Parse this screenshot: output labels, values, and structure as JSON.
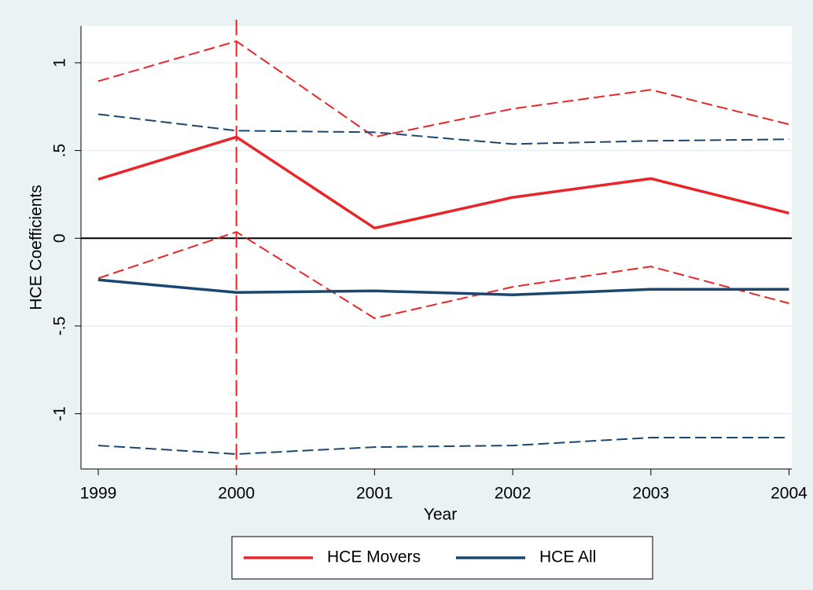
{
  "chart_data": {
    "type": "line",
    "x_label": "Year",
    "y_label": "HCE Coefficients",
    "x": [
      1999,
      2000,
      2001,
      2002,
      2003,
      2004
    ],
    "xlim": [
      1998.875,
      2004.02
    ],
    "xticks": [
      1999,
      2000,
      2001,
      2002,
      2003,
      2004
    ],
    "ylim": [
      -1.315,
      1.21
    ],
    "yticks": [
      {
        "value": -1,
        "label": "-1"
      },
      {
        "value": -0.5,
        "label": "-.5"
      },
      0,
      {
        "value": 0.5,
        "label": ".5"
      },
      1
    ],
    "grid": true,
    "xline": 2000,
    "xline_color": "#e8262a",
    "yline": 0,
    "legend": "bottom",
    "series": [
      {
        "name": "HCE Movers",
        "color": "#e8262a",
        "values": [
          0.336,
          0.577,
          0.058,
          0.233,
          0.34,
          0.143
        ],
        "upper": [
          0.895,
          1.123,
          0.577,
          0.738,
          0.846,
          0.649
        ],
        "lower": [
          -0.228,
          0.036,
          -0.456,
          -0.277,
          -0.161,
          -0.371
        ]
      },
      {
        "name": "HCE All",
        "color": "#1a476f",
        "values": [
          -0.237,
          -0.309,
          -0.3,
          -0.322,
          -0.291,
          -0.291
        ],
        "upper": [
          0.707,
          0.613,
          0.604,
          0.537,
          0.555,
          0.564
        ],
        "lower": [
          -1.181,
          -1.23,
          -1.19,
          -1.181,
          -1.136,
          -1.136
        ]
      }
    ]
  }
}
